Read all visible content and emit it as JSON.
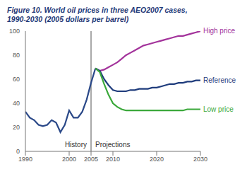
{
  "chart_data": {
    "type": "line",
    "title": "Figure 10. World oil prices in three AEO2007 cases,\n1990-2030 (2005 dollars per barrel)",
    "x": [
      1990,
      1991,
      1992,
      1993,
      1994,
      1995,
      1996,
      1997,
      1998,
      1999,
      2000,
      2001,
      2002,
      2003,
      2004,
      2005,
      2006,
      2007,
      2008,
      2009,
      2010,
      2011,
      2012,
      2013,
      2014,
      2015,
      2016,
      2017,
      2018,
      2019,
      2020,
      2021,
      2022,
      2023,
      2024,
      2025,
      2026,
      2027,
      2028,
      2029,
      2030
    ],
    "series": [
      {
        "name": "History",
        "color": "#2a4888",
        "values": [
          33,
          28,
          26,
          22,
          21,
          22,
          26,
          24,
          16,
          22,
          34,
          28,
          28,
          33,
          43,
          57,
          69,
          null,
          null,
          null,
          null,
          null,
          null,
          null,
          null,
          null,
          null,
          null,
          null,
          null,
          null,
          null,
          null,
          null,
          null,
          null,
          null,
          null,
          null,
          null,
          null
        ]
      },
      {
        "name": "High price",
        "color": "#a3339b",
        "values": [
          null,
          null,
          null,
          null,
          null,
          null,
          null,
          null,
          null,
          null,
          null,
          null,
          null,
          null,
          null,
          null,
          69,
          67,
          68,
          70,
          72,
          74,
          77,
          80,
          82,
          84,
          86,
          88,
          89,
          90,
          91,
          92,
          93,
          94,
          95,
          96,
          96,
          97,
          98,
          99,
          100
        ]
      },
      {
        "name": "Reference",
        "color": "#1f3c7c",
        "values": [
          null,
          null,
          null,
          null,
          null,
          null,
          null,
          null,
          null,
          null,
          null,
          null,
          null,
          null,
          null,
          null,
          69,
          67,
          60,
          55,
          51,
          50,
          50,
          50,
          51,
          51,
          52,
          52,
          52,
          53,
          53,
          54,
          55,
          56,
          56,
          57,
          57,
          58,
          58,
          59,
          59
        ]
      },
      {
        "name": "Low price",
        "color": "#3aa83a",
        "values": [
          null,
          null,
          null,
          null,
          null,
          null,
          null,
          null,
          null,
          null,
          null,
          null,
          null,
          null,
          null,
          null,
          69,
          66,
          56,
          47,
          40,
          37,
          35,
          34,
          34,
          34,
          34,
          34,
          34,
          34,
          34,
          34,
          34,
          34,
          34,
          34,
          34,
          35,
          35,
          35,
          35
        ]
      }
    ],
    "annotations": [
      "Projections"
    ],
    "divider_x": 2005,
    "xlim": [
      1990,
      2030
    ],
    "xticks": [
      1990,
      2000,
      2005,
      2010,
      2020,
      2030
    ],
    "ylim": [
      0,
      100
    ],
    "yticks": [
      0,
      20,
      40,
      60,
      80,
      100
    ],
    "grid": false
  }
}
